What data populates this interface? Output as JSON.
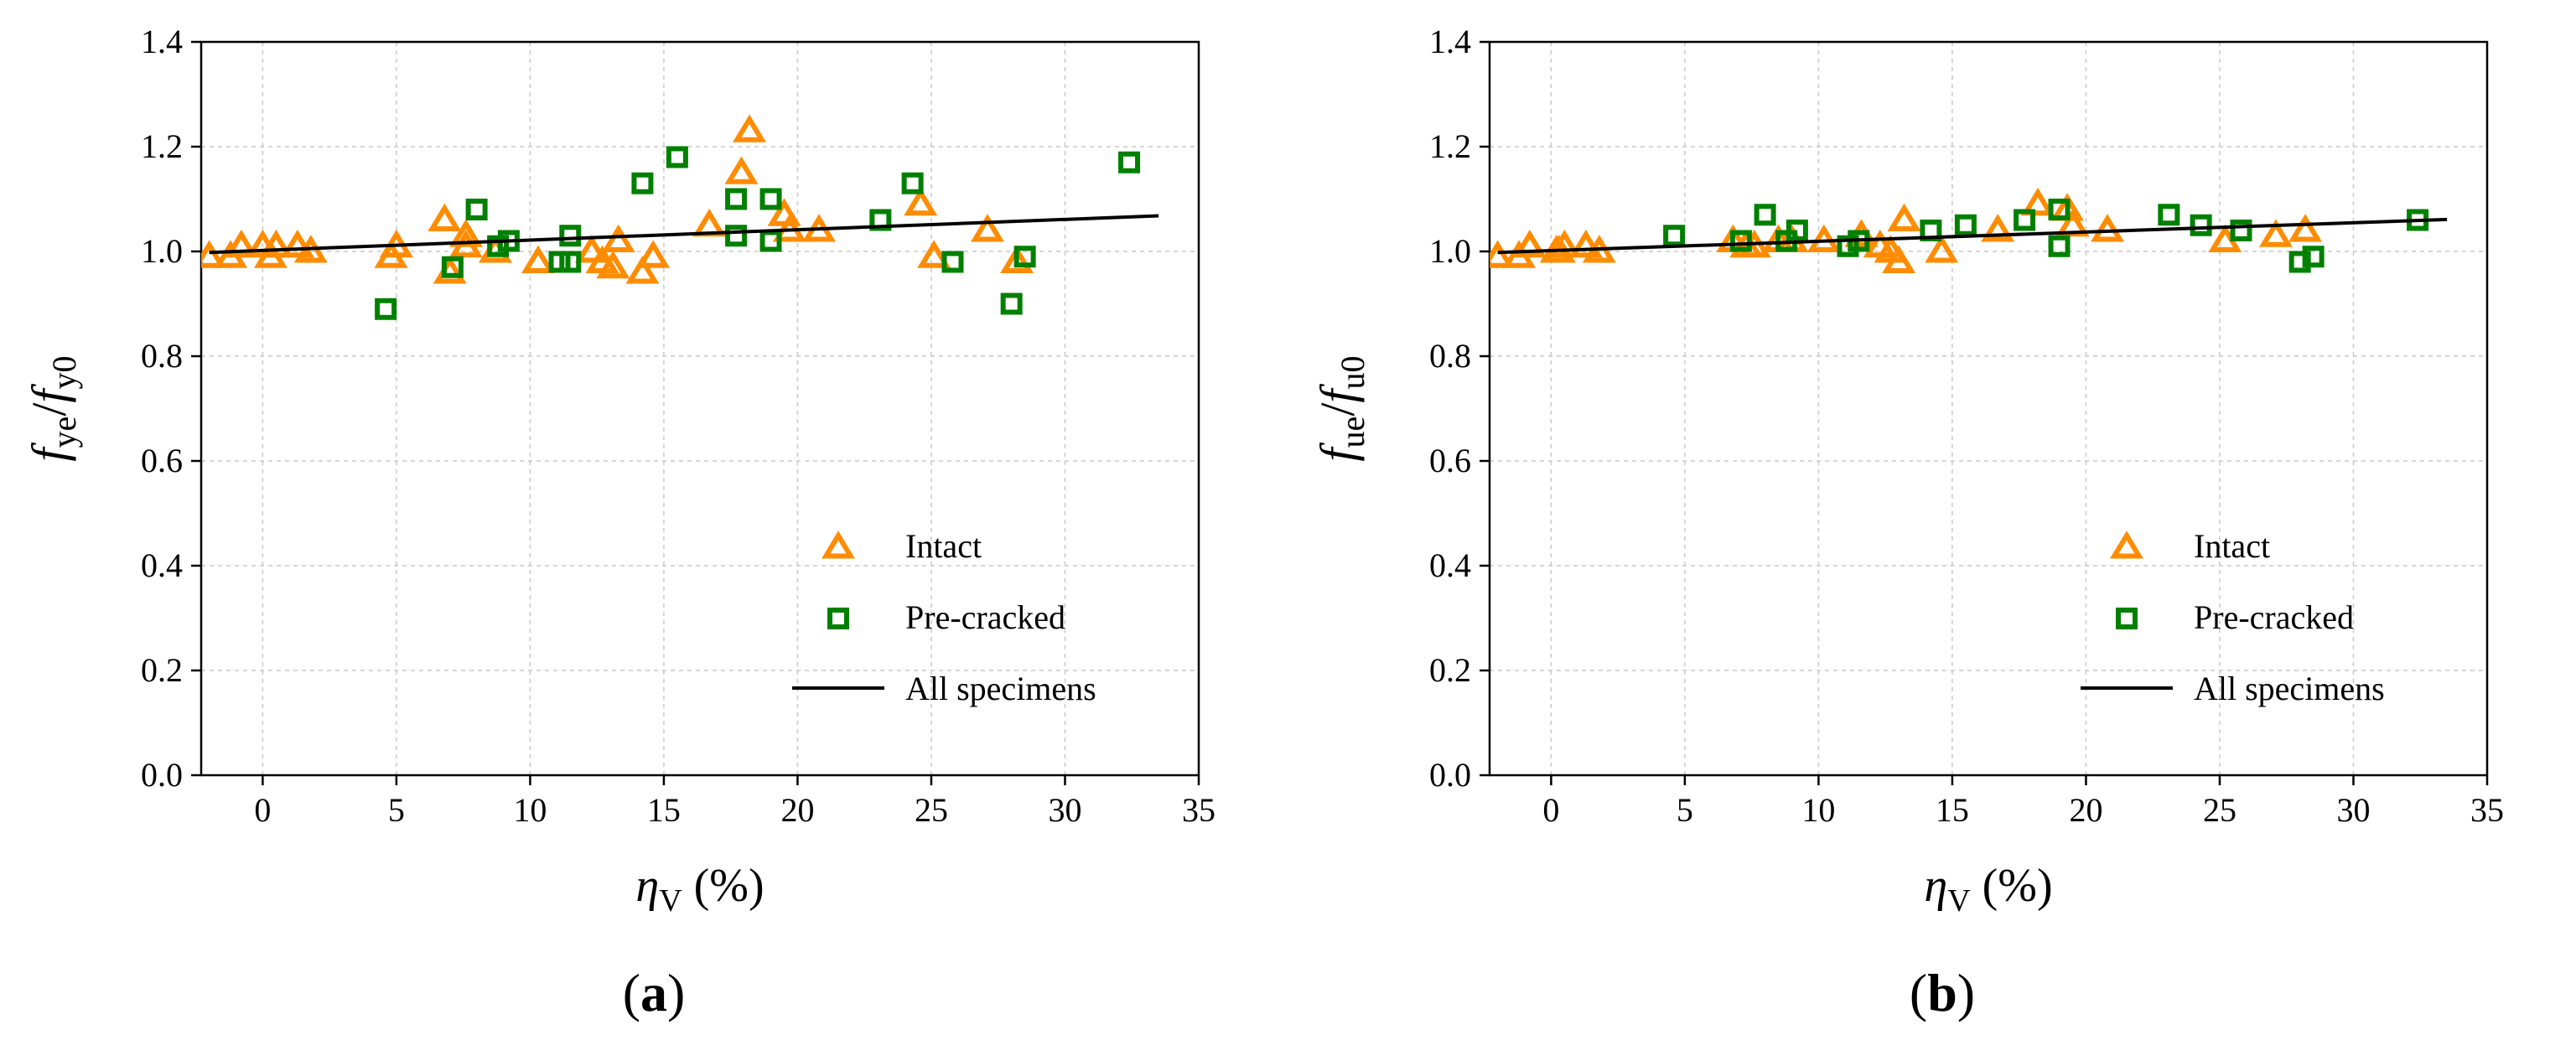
{
  "panels": [
    {
      "label_letter": "a",
      "chart_data": {
        "type": "scatter",
        "title": "",
        "xlabel_symbol": "η",
        "xlabel_sub": "V",
        "xlabel_unit": " (%)",
        "ylabel_f": "f",
        "ylabel_sub1": "ye",
        "ylabel_slash": "/",
        "ylabel_f2": "f",
        "ylabel_sub2": "y0",
        "xlim": [
          -2.3,
          35
        ],
        "ylim": [
          0,
          1.4
        ],
        "xticks": [
          0,
          5,
          10,
          15,
          20,
          25,
          30,
          35
        ],
        "yticks": [
          0.0,
          0.2,
          0.4,
          0.6,
          0.8,
          1.0,
          1.2,
          1.4
        ],
        "grid": true,
        "legend_position": "bottom-right",
        "series": [
          {
            "name": "Intact",
            "marker": "triangle",
            "color": "#FF8C00",
            "points": [
              [
                -2.0,
                0.99
              ],
              [
                -1.2,
                0.99
              ],
              [
                -0.8,
                1.01
              ],
              [
                0,
                1.01
              ],
              [
                0.5,
                1.01
              ],
              [
                0.3,
                0.99
              ],
              [
                1.3,
                1.01
              ],
              [
                1.8,
                1.0
              ],
              [
                4.8,
                0.99
              ],
              [
                5.0,
                1.01
              ],
              [
                6.8,
                1.06
              ],
              [
                7.0,
                0.96
              ],
              [
                7.6,
                1.01
              ],
              [
                7.6,
                1.03
              ],
              [
                8.7,
                1.0
              ],
              [
                10.3,
                0.98
              ],
              [
                12.3,
                1.0
              ],
              [
                12.7,
                0.98
              ],
              [
                13.1,
                0.97
              ],
              [
                13.3,
                1.02
              ],
              [
                14.2,
                0.96
              ],
              [
                14.6,
                0.99
              ],
              [
                16.7,
                1.05
              ],
              [
                17.9,
                1.15
              ],
              [
                18.2,
                1.23
              ],
              [
                19.5,
                1.07
              ],
              [
                19.7,
                1.04
              ],
              [
                20.8,
                1.04
              ],
              [
                24.6,
                1.09
              ],
              [
                25.1,
                0.99
              ],
              [
                27.1,
                1.04
              ],
              [
                28.2,
                0.98
              ]
            ]
          },
          {
            "name": "Pre-cracked",
            "marker": "square",
            "color": "#008000",
            "points": [
              [
                4.6,
                0.89
              ],
              [
                7.1,
                0.97
              ],
              [
                8.0,
                1.08
              ],
              [
                8.8,
                1.01
              ],
              [
                9.2,
                1.02
              ],
              [
                11.1,
                0.98
              ],
              [
                11.5,
                1.03
              ],
              [
                11.5,
                0.98
              ],
              [
                14.2,
                1.13
              ],
              [
                15.5,
                1.18
              ],
              [
                17.7,
                1.1
              ],
              [
                17.7,
                1.03
              ],
              [
                19.0,
                1.1
              ],
              [
                19.0,
                1.02
              ],
              [
                23.1,
                1.06
              ],
              [
                24.3,
                1.13
              ],
              [
                25.8,
                0.98
              ],
              [
                28.0,
                0.9
              ],
              [
                28.5,
                0.99
              ],
              [
                32.4,
                1.17
              ]
            ]
          },
          {
            "name": "All specimens",
            "marker": "line",
            "color": "#000000",
            "line": [
              [
                -2.0,
                0.998
              ],
              [
                33.5,
                1.068
              ]
            ]
          }
        ]
      }
    },
    {
      "label_letter": "b",
      "chart_data": {
        "type": "scatter",
        "title": "",
        "xlabel_symbol": "η",
        "xlabel_sub": "V",
        "xlabel_unit": " (%)",
        "ylabel_f": "f",
        "ylabel_sub1": "ue",
        "ylabel_slash": "/",
        "ylabel_f2": "f",
        "ylabel_sub2": "u0",
        "xlim": [
          -2.3,
          35
        ],
        "ylim": [
          0,
          1.4
        ],
        "xticks": [
          0,
          5,
          10,
          15,
          20,
          25,
          30,
          35
        ],
        "yticks": [
          0.0,
          0.2,
          0.4,
          0.6,
          0.8,
          1.0,
          1.2,
          1.4
        ],
        "grid": true,
        "legend_position": "bottom-right",
        "series": [
          {
            "name": "Intact",
            "marker": "triangle",
            "color": "#FF8C00",
            "points": [
              [
                -2.0,
                0.99
              ],
              [
                -1.2,
                0.99
              ],
              [
                -0.8,
                1.01
              ],
              [
                0.2,
                1.0
              ],
              [
                0.5,
                1.01
              ],
              [
                0.3,
                1.0
              ],
              [
                1.3,
                1.01
              ],
              [
                1.8,
                1.0
              ],
              [
                6.8,
                1.02
              ],
              [
                7.3,
                1.01
              ],
              [
                7.6,
                1.01
              ],
              [
                8.5,
                1.02
              ],
              [
                9.0,
                1.02
              ],
              [
                10.2,
                1.02
              ],
              [
                11.6,
                1.03
              ],
              [
                12.3,
                1.01
              ],
              [
                12.7,
                1.0
              ],
              [
                13.0,
                0.98
              ],
              [
                13.2,
                1.06
              ],
              [
                14.6,
                1.0
              ],
              [
                16.7,
                1.04
              ],
              [
                18.2,
                1.09
              ],
              [
                19.3,
                1.08
              ],
              [
                19.5,
                1.05
              ],
              [
                20.8,
                1.04
              ],
              [
                25.2,
                1.02
              ],
              [
                27.1,
                1.03
              ],
              [
                28.2,
                1.04
              ]
            ]
          },
          {
            "name": "Pre-cracked",
            "marker": "square",
            "color": "#008000",
            "points": [
              [
                4.6,
                1.03
              ],
              [
                7.1,
                1.02
              ],
              [
                8.0,
                1.07
              ],
              [
                8.8,
                1.02
              ],
              [
                9.2,
                1.04
              ],
              [
                11.1,
                1.01
              ],
              [
                11.5,
                1.02
              ],
              [
                14.2,
                1.04
              ],
              [
                15.5,
                1.05
              ],
              [
                17.7,
                1.06
              ],
              [
                19.0,
                1.08
              ],
              [
                19.0,
                1.01
              ],
              [
                23.1,
                1.07
              ],
              [
                24.3,
                1.05
              ],
              [
                25.8,
                1.04
              ],
              [
                28.0,
                0.98
              ],
              [
                28.5,
                0.99
              ],
              [
                32.4,
                1.06
              ]
            ]
          },
          {
            "name": "All specimens",
            "marker": "line",
            "color": "#000000",
            "line": [
              [
                -2.0,
                0.998
              ],
              [
                33.5,
                1.061
              ]
            ]
          }
        ]
      }
    }
  ]
}
